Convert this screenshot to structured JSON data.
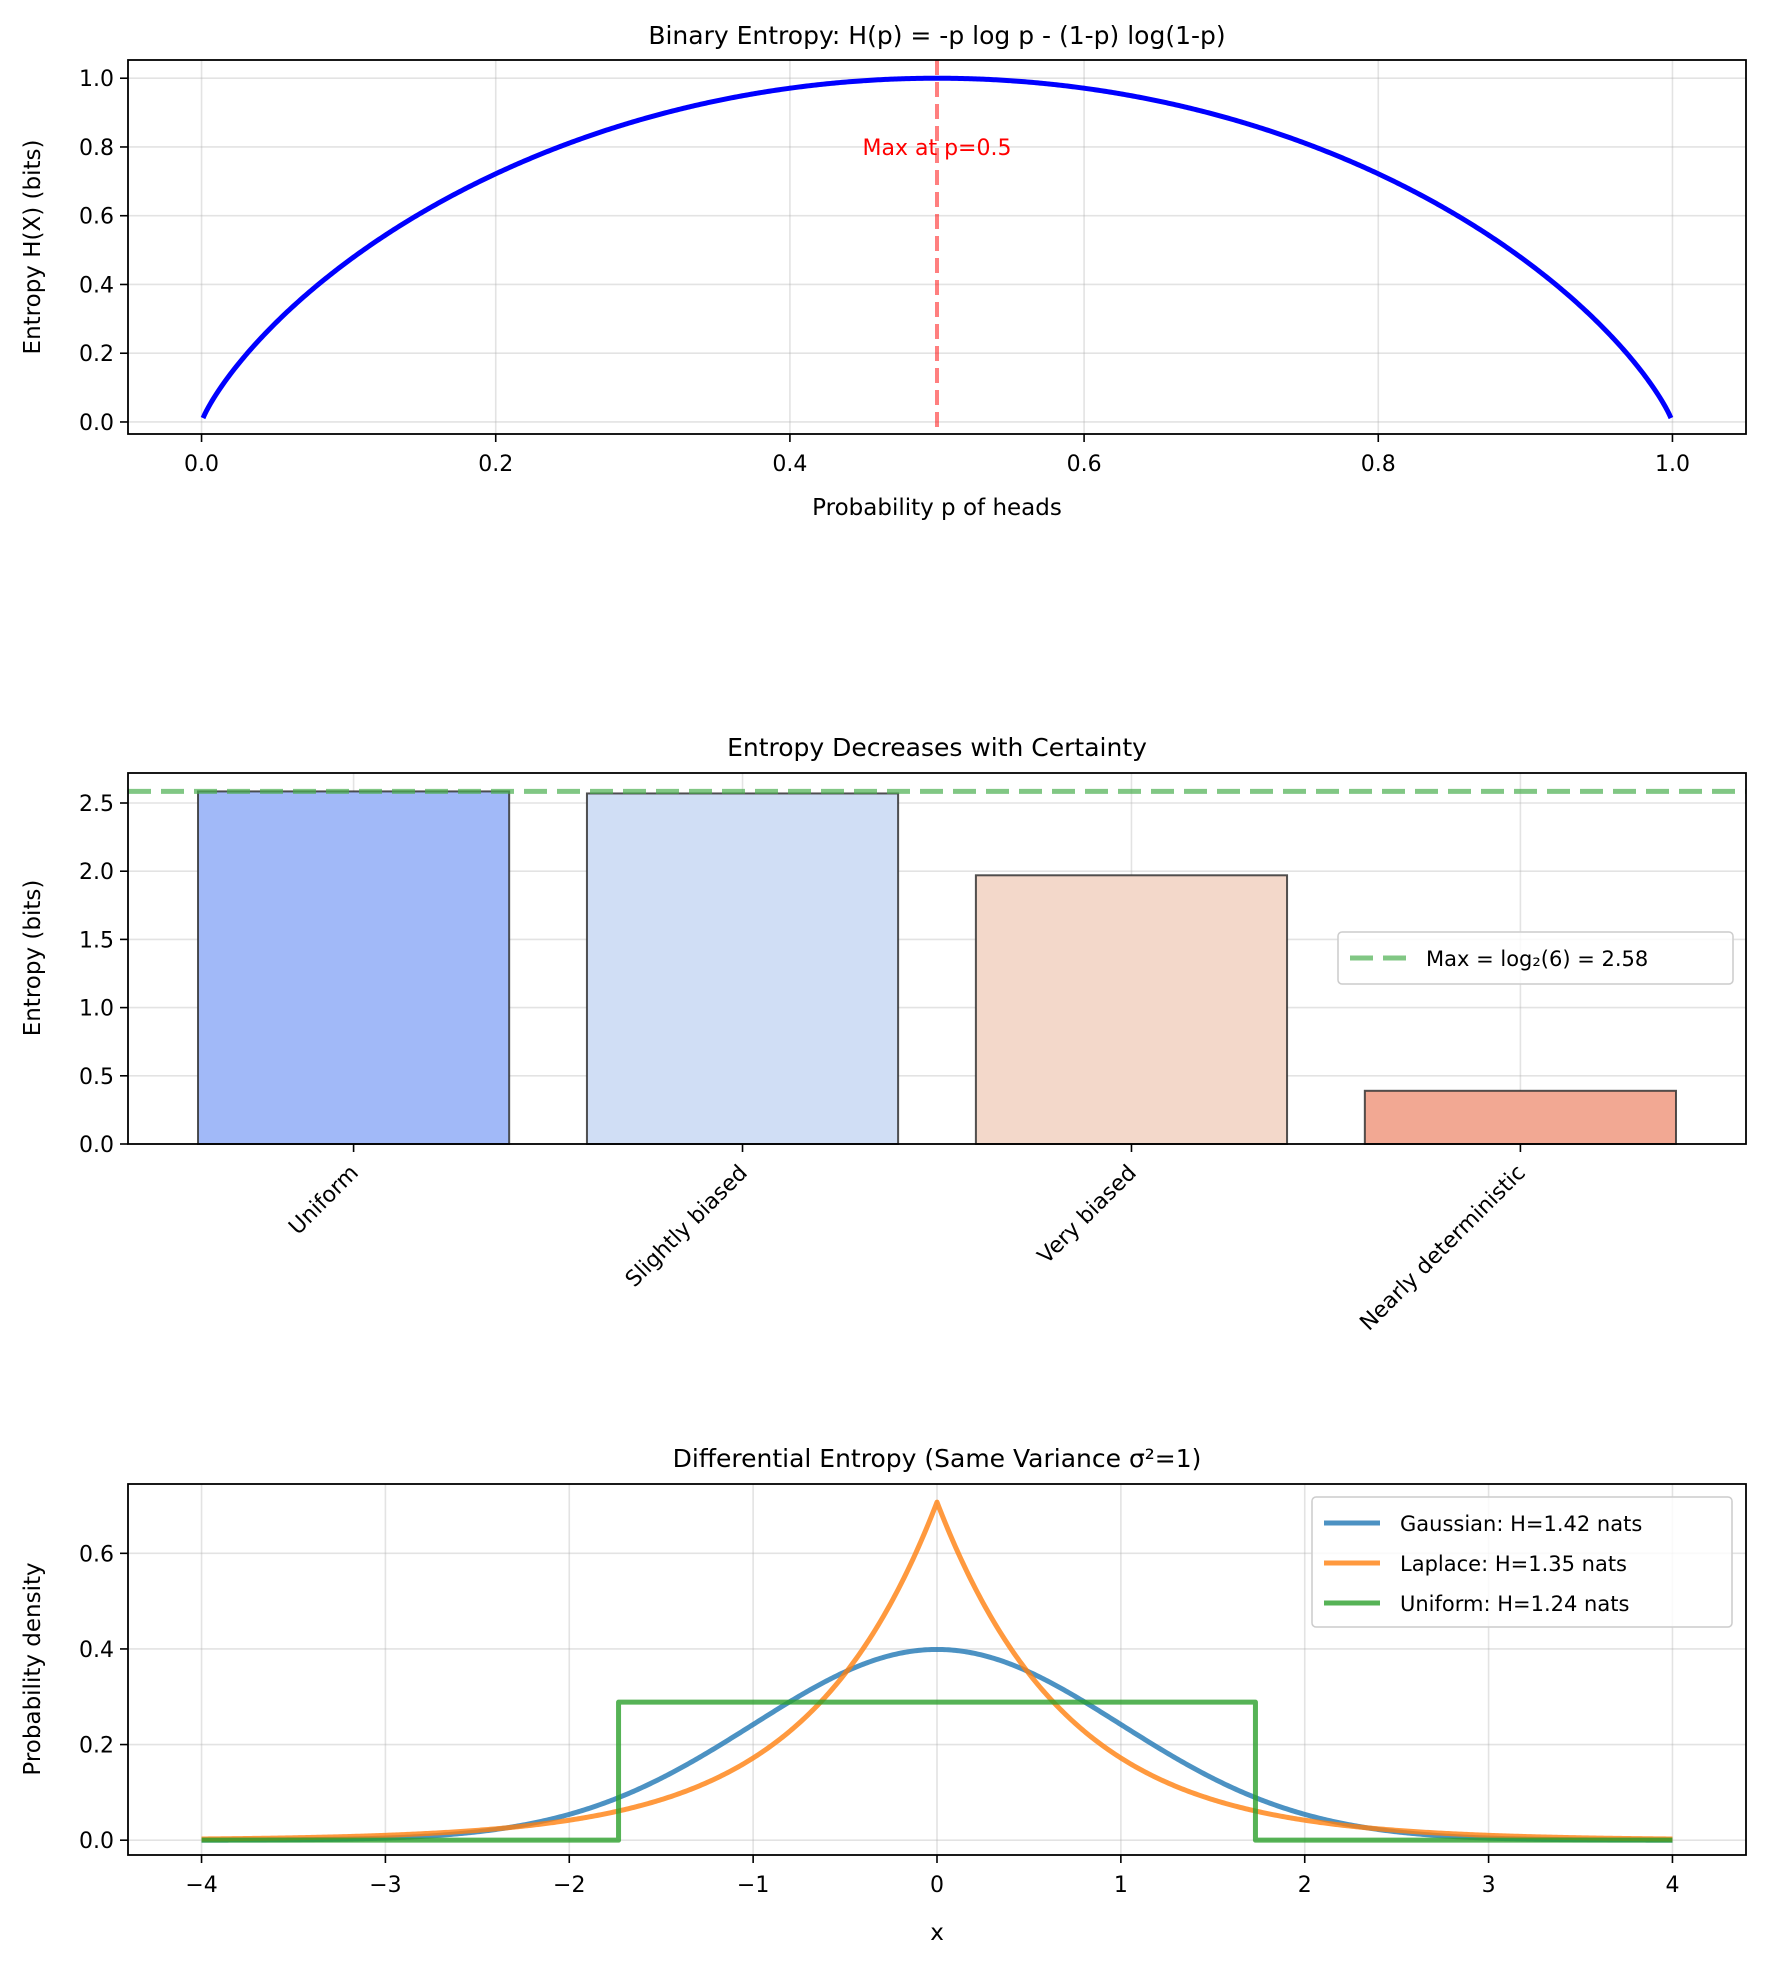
{
  "chart_data": [
    {
      "id": "binary-entropy",
      "type": "line",
      "title": "Binary Entropy: H(p) = -p log p - (1-p) log(1-p)",
      "xlabel": "Probability p of heads",
      "ylabel": "Entropy H(X) (bits)",
      "xlim": [
        -0.05,
        1.05
      ],
      "ylim": [
        -0.035,
        1.053
      ],
      "xticks": [
        0.0,
        0.2,
        0.4,
        0.6,
        0.8,
        1.0
      ],
      "xtick_labels": [
        "0.0",
        "0.2",
        "0.4",
        "0.6",
        "0.8",
        "1.0"
      ],
      "yticks": [
        0.0,
        0.2,
        0.4,
        0.6,
        0.8,
        1.0
      ],
      "ytick_labels": [
        "0.0",
        "0.2",
        "0.4",
        "0.6",
        "0.8",
        "1.0"
      ],
      "grid": true,
      "series": [
        {
          "name": "H(p)",
          "color": "#0000ff",
          "function": "binary_entropy",
          "x_range": [
            0.001,
            0.999
          ]
        }
      ],
      "vlines": [
        {
          "x": 0.5,
          "color": "#ff0000",
          "opacity": 0.5,
          "style": "dashed"
        }
      ],
      "annotations": [
        {
          "text": "Max at p=0.5",
          "x": 0.5,
          "y": 0.8,
          "color": "#ff0000"
        }
      ]
    },
    {
      "id": "entropy-certainty",
      "type": "bar",
      "title": "Entropy Decreases with Certainty",
      "xlabel": "",
      "ylabel": "Entropy (bits)",
      "ylim": [
        0,
        2.72
      ],
      "categories": [
        "Uniform",
        "Slightly biased",
        "Very biased",
        "Nearly deterministic"
      ],
      "values": [
        2.585,
        2.57,
        1.97,
        0.39
      ],
      "colors": [
        "#a1b9f8",
        "#d0def5",
        "#f3d8ca",
        "#f2a893"
      ],
      "edge_color": "#333333",
      "yticks": [
        0.0,
        0.5,
        1.0,
        1.5,
        2.0,
        2.5
      ],
      "ytick_labels": [
        "0.0",
        "0.5",
        "1.0",
        "1.5",
        "2.0",
        "2.5"
      ],
      "grid": true,
      "hlines": [
        {
          "y": 2.585,
          "color": "#4caf50",
          "opacity": 0.7,
          "style": "dashed",
          "label": "Max = log₂(6) = 2.58"
        }
      ],
      "legend": {
        "placement": "center-right",
        "entries": [
          {
            "label": "Max = log₂(6) = 2.58",
            "color": "#4caf50",
            "style": "dashed"
          }
        ]
      }
    },
    {
      "id": "differential-entropy",
      "type": "line",
      "title": "Differential Entropy (Same Variance σ²=1)",
      "xlabel": "x",
      "ylabel": "Probability density",
      "xlim": [
        -4.4,
        4.4
      ],
      "ylim": [
        -0.031,
        0.745
      ],
      "xticks": [
        -4,
        -3,
        -2,
        -1,
        0,
        1,
        2,
        3,
        4
      ],
      "xtick_labels": [
        "−4",
        "−3",
        "−2",
        "−1",
        "0",
        "1",
        "2",
        "3",
        "4"
      ],
      "yticks": [
        0.0,
        0.2,
        0.4,
        0.6
      ],
      "ytick_labels": [
        "0.0",
        "0.2",
        "0.4",
        "0.6"
      ],
      "grid": true,
      "series": [
        {
          "name": "Gaussian: H=1.42 nats",
          "color": "#1f77b4",
          "function": "gaussian",
          "params": {
            "mu": 0,
            "sigma": 1
          },
          "x_range": [
            -4,
            4
          ]
        },
        {
          "name": "Laplace: H=1.35 nats",
          "color": "#ff7f0e",
          "function": "laplace",
          "params": {
            "mu": 0,
            "b": 0.7071
          },
          "x_range": [
            -4,
            4
          ]
        },
        {
          "name": "Uniform: H=1.24 nats",
          "color": "#2ca02c",
          "function": "uniform",
          "params": {
            "a": -1.732,
            "b": 1.732
          },
          "x_range": [
            -4,
            4
          ]
        }
      ],
      "legend": {
        "placement": "top-right",
        "entries": [
          {
            "label": "Gaussian: H=1.42 nats",
            "color": "#1f77b4"
          },
          {
            "label": "Laplace: H=1.35 nats",
            "color": "#ff7f0e"
          },
          {
            "label": "Uniform: H=1.24 nats",
            "color": "#2ca02c"
          }
        ]
      }
    }
  ]
}
